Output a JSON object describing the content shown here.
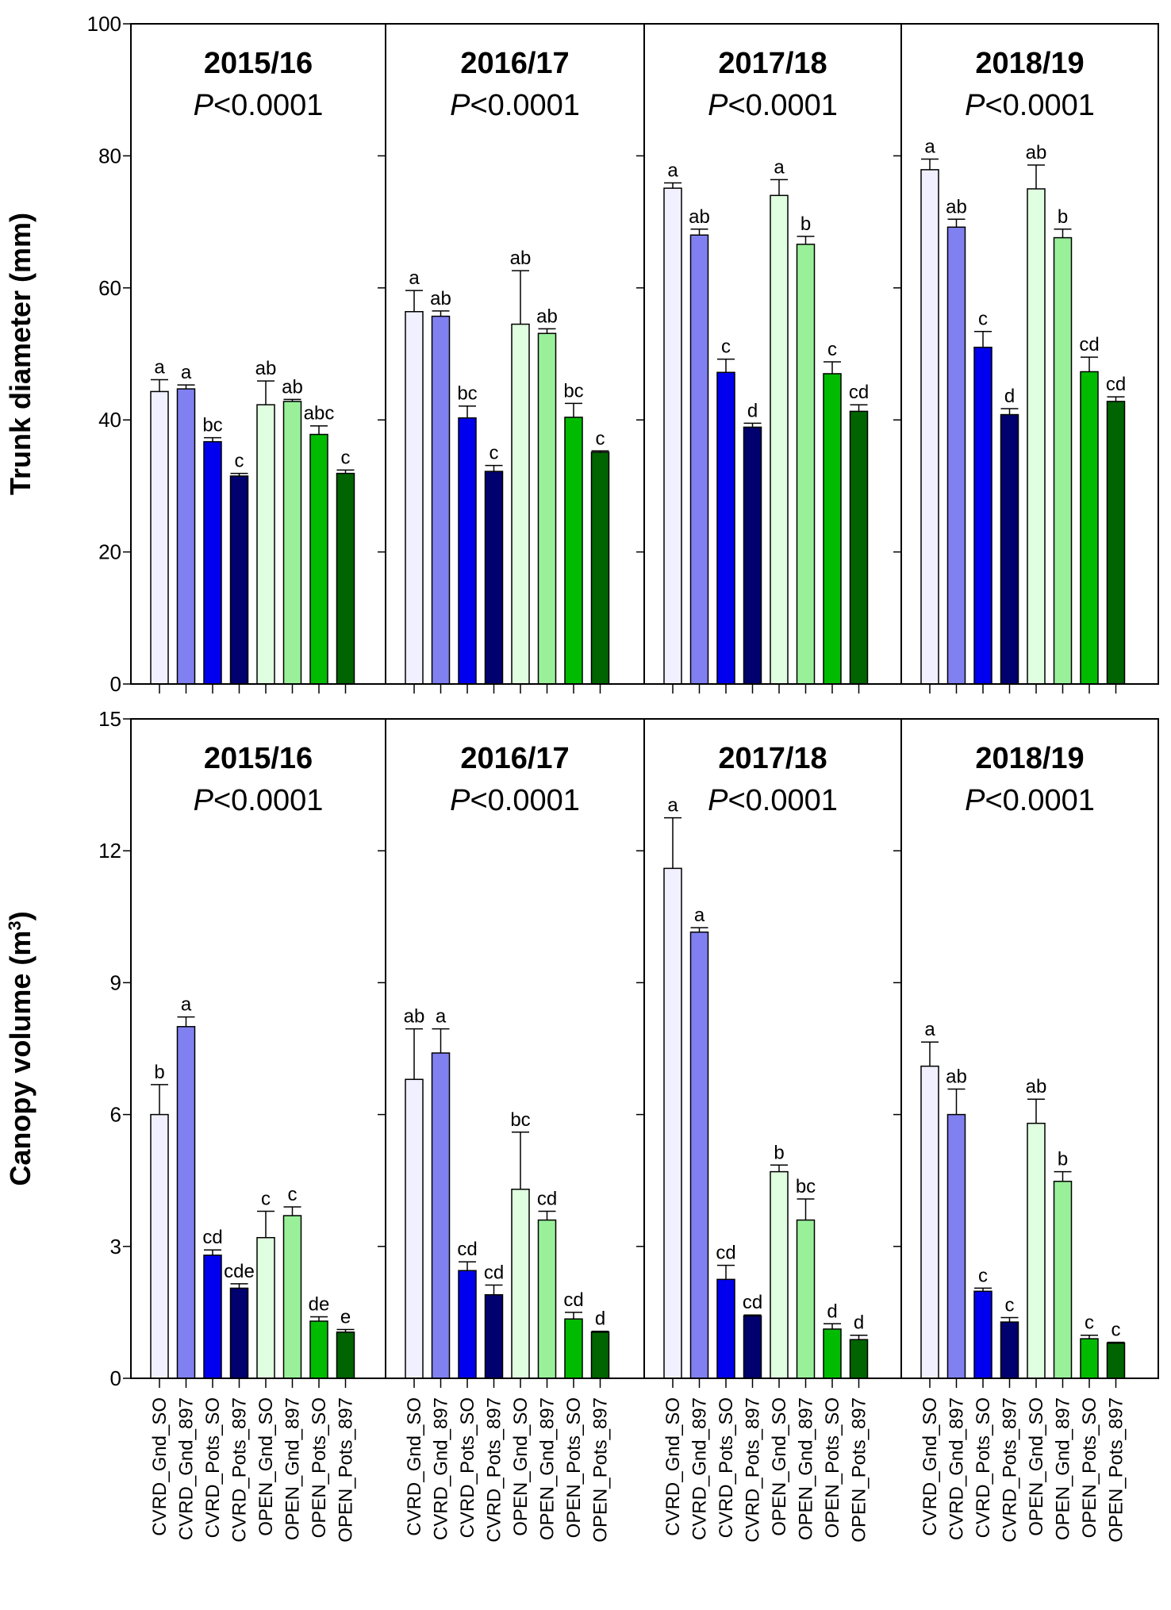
{
  "chart_data": {
    "type": "bar",
    "layout": "2 rows x 4 columns of panels",
    "categories": [
      "CVRD_Gnd_SO",
      "CVRD_Gnd_897",
      "CVRD_Pots_SO",
      "CVRD_Pots_897",
      "OPEN_Gnd_SO",
      "OPEN_Gnd_897",
      "OPEN_Pots_SO",
      "OPEN_Pots_897"
    ],
    "bar_colors": [
      "#f0f0ff",
      "#8080f0",
      "#0000ee",
      "#00006e",
      "#e0ffe0",
      "#99f099",
      "#00bb00",
      "#006400"
    ],
    "p_prefix": "P",
    "rows": [
      {
        "ylabel": "Trunk diameter (mm)",
        "ylim": [
          0,
          100
        ],
        "yticks": [
          "0",
          "20",
          "40",
          "60",
          "80",
          "100"
        ],
        "panels": [
          {
            "title": "2015/16",
            "p_text": "<0.0001",
            "values": [
              44.3,
              44.7,
              36.7,
              31.5,
              42.3,
              42.8,
              37.8,
              31.9
            ],
            "errors": [
              1.8,
              0.6,
              0.6,
              0.4,
              3.6,
              0.3,
              1.3,
              0.5
            ],
            "letters": [
              "a",
              "a",
              "bc",
              "c",
              "ab",
              "ab",
              "abc",
              "c"
            ]
          },
          {
            "title": "2016/17",
            "p_text": "<0.0001",
            "values": [
              56.4,
              55.7,
              40.3,
              32.2,
              54.5,
              53.1,
              40.4,
              35.1
            ],
            "errors": [
              3.2,
              0.8,
              1.8,
              0.9,
              8.1,
              0.7,
              2.1,
              0.2
            ],
            "letters": [
              "a",
              "ab",
              "bc",
              "c",
              "ab",
              "ab",
              "bc",
              "c"
            ]
          },
          {
            "title": "2017/18",
            "p_text": "<0.0001",
            "values": [
              75.1,
              68.0,
              47.2,
              38.9,
              74.0,
              66.6,
              47.0,
              41.3
            ],
            "errors": [
              0.8,
              0.9,
              2.0,
              0.6,
              2.4,
              1.2,
              1.8,
              1.0
            ],
            "letters": [
              "a",
              "ab",
              "c",
              "d",
              "a",
              "b",
              "c",
              "cd"
            ]
          },
          {
            "title": "2018/19",
            "p_text": "<0.0001",
            "values": [
              77.9,
              69.2,
              51.0,
              40.8,
              75.0,
              67.6,
              47.3,
              42.8
            ],
            "errors": [
              1.6,
              1.2,
              2.4,
              0.9,
              3.6,
              1.3,
              2.2,
              0.7
            ],
            "letters": [
              "a",
              "ab",
              "c",
              "d",
              "ab",
              "b",
              "cd",
              "cd"
            ]
          }
        ]
      },
      {
        "ylabel": "Canopy volume (m",
        "ylabel_superscript": "3",
        "ylabel_close": ")",
        "ylim": [
          0,
          15
        ],
        "yticks": [
          "0",
          "3",
          "6",
          "9",
          "12",
          "15"
        ],
        "panels": [
          {
            "title": "2015/16",
            "p_text": "<0.0001",
            "values": [
              6.0,
              8.0,
              2.8,
              2.05,
              3.2,
              3.7,
              1.3,
              1.05
            ],
            "errors": [
              0.68,
              0.22,
              0.12,
              0.1,
              0.6,
              0.2,
              0.1,
              0.06
            ],
            "letters": [
              "b",
              "a",
              "cd",
              "cde",
              "c",
              "c",
              "de",
              "e"
            ]
          },
          {
            "title": "2016/17",
            "p_text": "<0.0001",
            "values": [
              6.8,
              7.4,
              2.45,
              1.9,
              4.3,
              3.6,
              1.35,
              1.05
            ],
            "errors": [
              1.15,
              0.55,
              0.2,
              0.22,
              1.3,
              0.2,
              0.15,
              0.02
            ],
            "letters": [
              "ab",
              "a",
              "cd",
              "cd",
              "bc",
              "cd",
              "cd",
              "d"
            ]
          },
          {
            "title": "2017/18",
            "p_text": "<0.0001",
            "values": [
              11.6,
              10.15,
              2.25,
              1.42,
              4.7,
              3.6,
              1.12,
              0.88
            ],
            "errors": [
              1.15,
              0.1,
              0.32,
              0.02,
              0.15,
              0.48,
              0.12,
              0.1
            ],
            "letters": [
              "a",
              "a",
              "cd",
              "cd",
              "b",
              "bc",
              "d",
              "d"
            ]
          },
          {
            "title": "2018/19",
            "p_text": "<0.0001",
            "values": [
              7.1,
              6.0,
              1.98,
              1.28,
              5.8,
              4.48,
              0.9,
              0.8
            ],
            "errors": [
              0.55,
              0.58,
              0.07,
              0.1,
              0.55,
              0.22,
              0.08,
              0.02
            ],
            "letters": [
              "a",
              "ab",
              "c",
              "c",
              "ab",
              "b",
              "c",
              "c"
            ]
          }
        ]
      }
    ]
  }
}
